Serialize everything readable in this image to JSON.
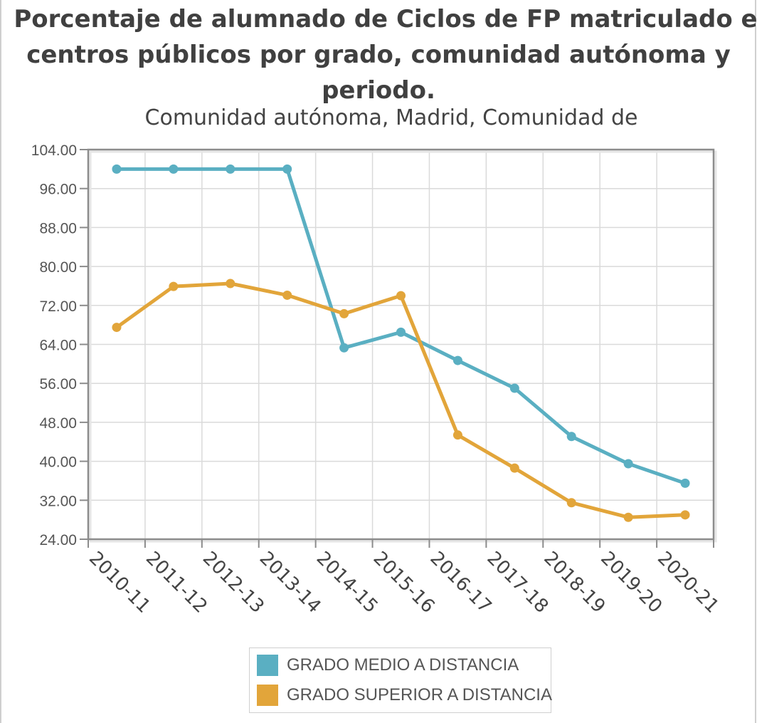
{
  "chart_data": {
    "type": "line",
    "title_lines": [
      "Porcentaje de alumnado de Ciclos de FP matriculado e",
      "centros públicos por grado, comunidad autónoma y",
      "periodo."
    ],
    "subtitle": "Comunidad autónoma, Madrid, Comunidad de",
    "xlabel": "",
    "ylabel": "",
    "categories": [
      "2010-11",
      "2011-12",
      "2012-13",
      "2013-14",
      "2014-15",
      "2015-16",
      "2016-17",
      "2017-18",
      "2018-19",
      "2019-20",
      "2020-21"
    ],
    "ylim": [
      24,
      104
    ],
    "yticks": [
      104,
      96,
      88,
      80,
      72,
      64,
      56,
      48,
      40,
      32,
      24
    ],
    "ytick_labels": [
      "104.00",
      "96.00",
      "88.00",
      "80.00",
      "72.00",
      "64.00",
      "56.00",
      "48.00",
      "40.00",
      "32.00",
      "24.00"
    ],
    "grid": true,
    "legend_position": "bottom-center",
    "series": [
      {
        "name": "GRADO MEDIO A DISTANCIA",
        "color": "#5aafc2",
        "values": [
          100,
          100,
          100,
          100,
          63.3,
          66.5,
          60.7,
          55,
          45.1,
          39.5,
          35.5
        ]
      },
      {
        "name": "GRADO SUPERIOR A DISTANCIA",
        "color": "#e2a53a",
        "values": [
          67.5,
          75.9,
          76.5,
          74.1,
          70.3,
          74,
          45.4,
          38.6,
          31.5,
          28.5,
          29
        ]
      }
    ]
  }
}
